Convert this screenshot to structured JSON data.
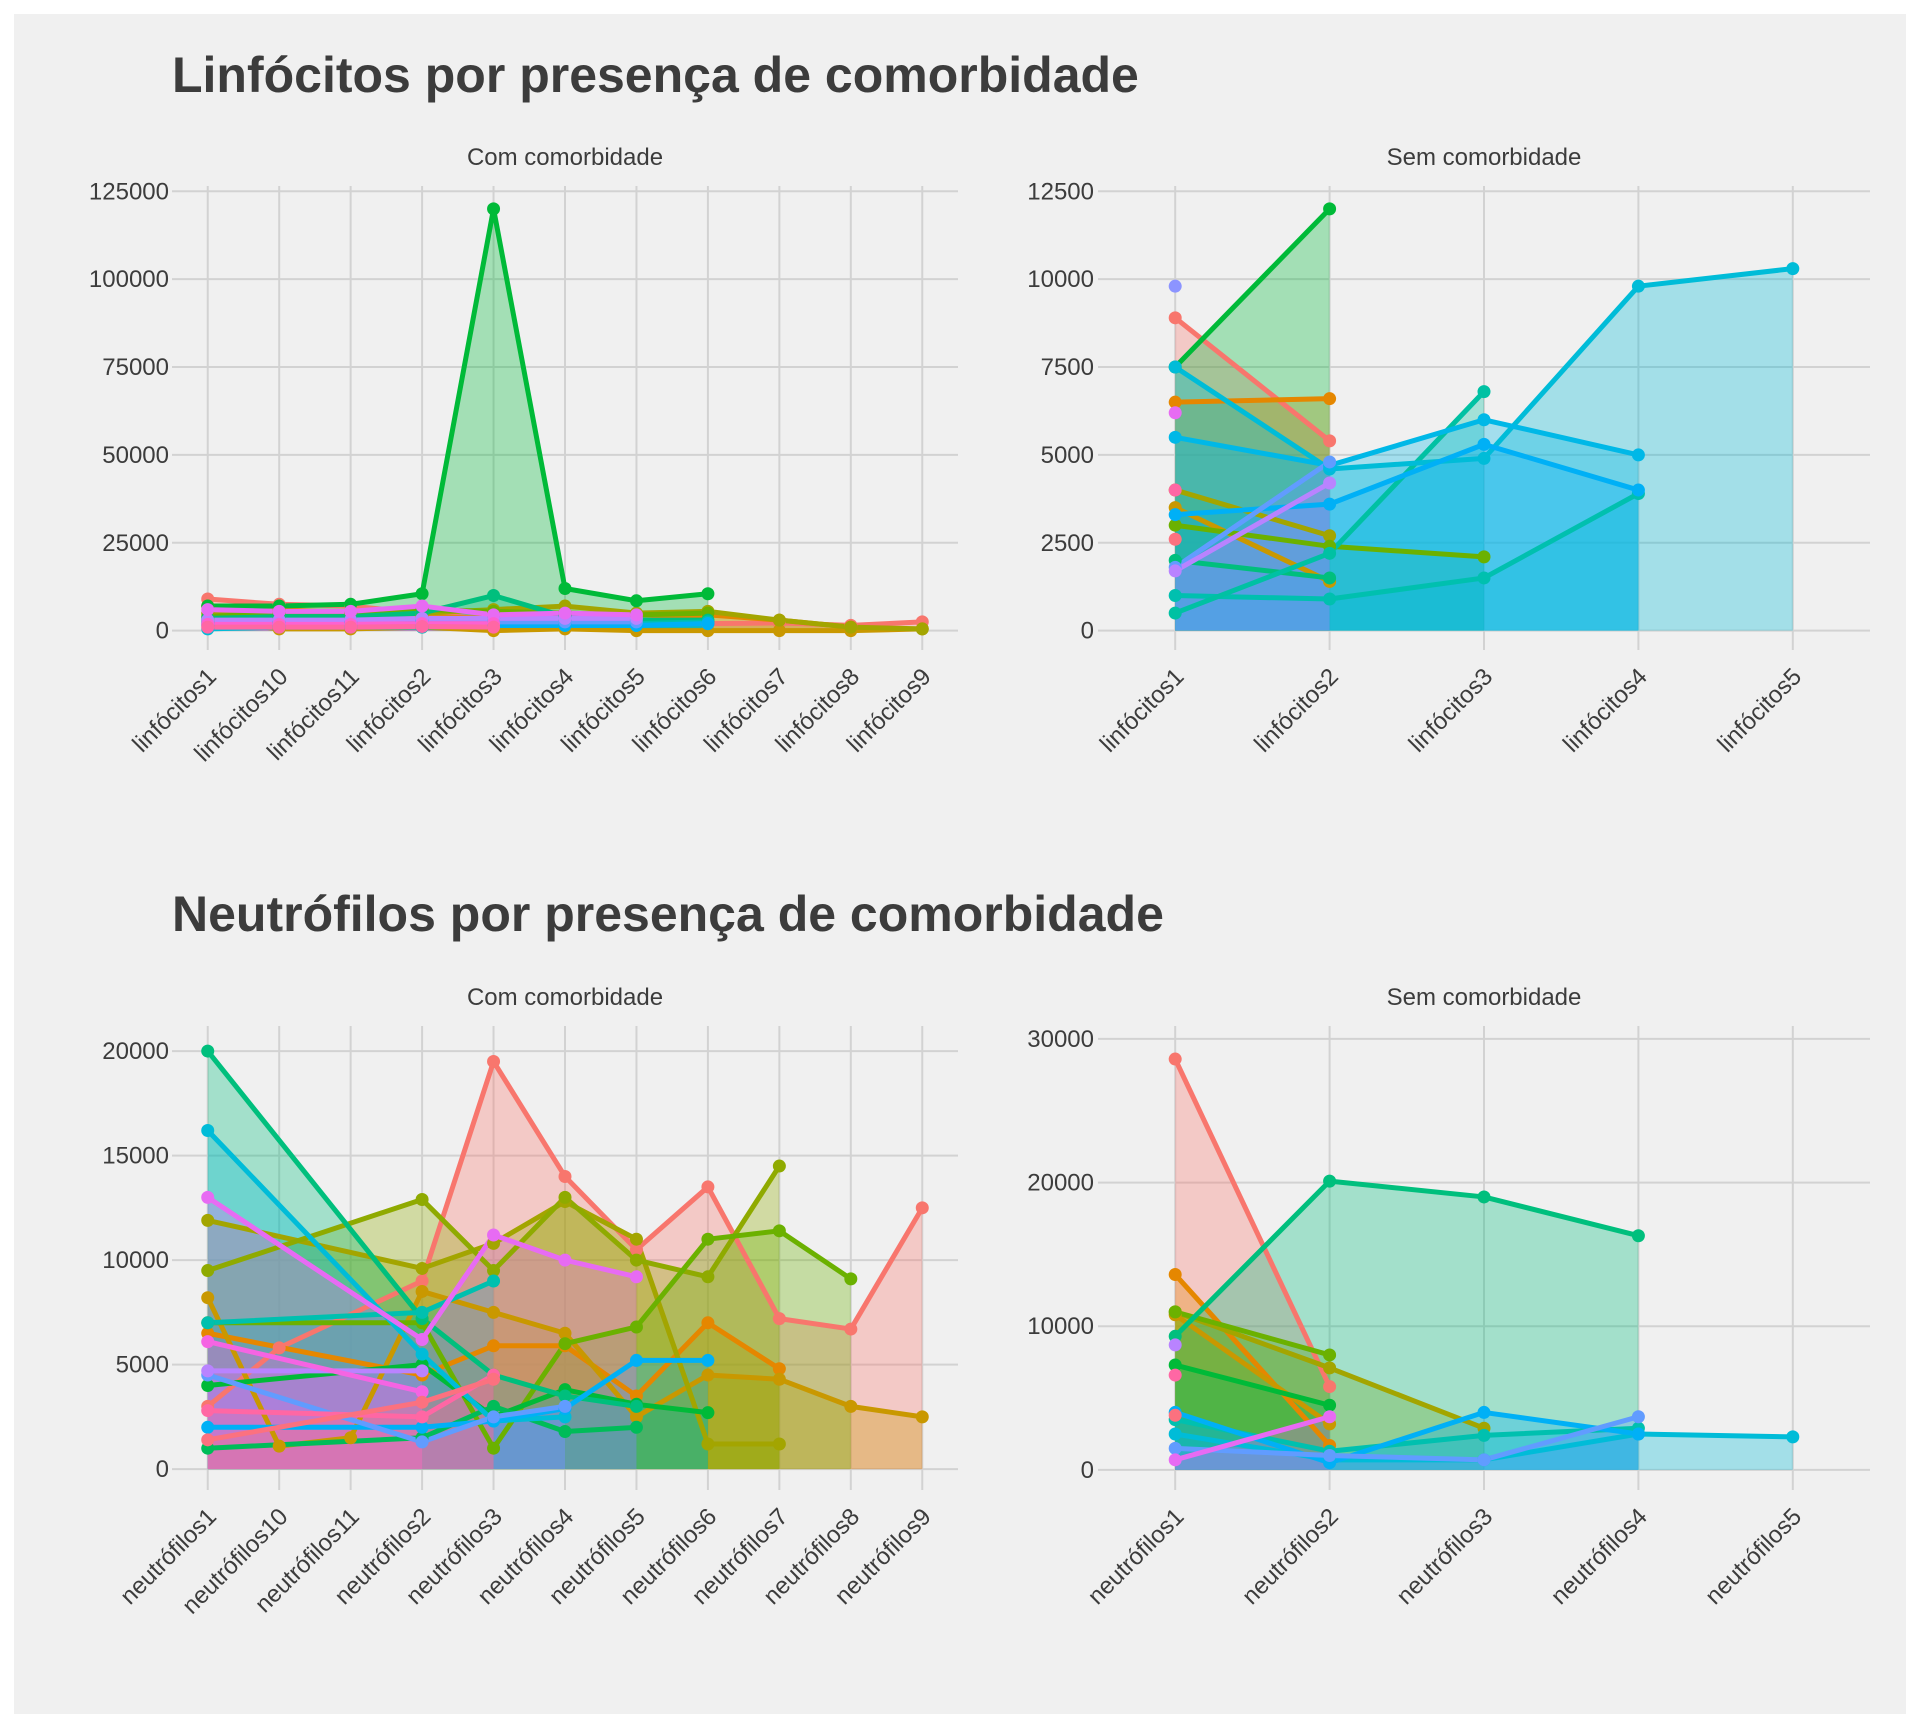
{
  "sections": [
    {
      "title": "Linfócitos por presença de comorbidade"
    },
    {
      "title": "Neutrófilos por presença de comorbidade"
    }
  ],
  "chart_data": [
    {
      "type": "area",
      "section": 0,
      "facet": "Com comorbidade",
      "x_categories": [
        "linfócitos1",
        "linfócitos10",
        "linfócitos11",
        "linfócitos2",
        "linfócitos3",
        "linfócitos4",
        "linfócitos5",
        "linfócitos6",
        "linfócitos7",
        "linfócitos8",
        "linfócitos9"
      ],
      "yticks": [
        0,
        25000,
        50000,
        75000,
        100000,
        125000
      ],
      "ylim": [
        -5500,
        126500
      ],
      "grid": true,
      "legend": "none",
      "series": [
        {
          "color": "#F8766D",
          "values": [
            9000,
            7500,
            7000,
            5000,
            3000,
            2500,
            2500,
            2000,
            2200,
            1500,
            2500
          ]
        },
        {
          "color": "#E58700",
          "values": [
            7000,
            6000,
            null,
            4000,
            3500,
            3000,
            2800,
            4500,
            3000,
            1000,
            null
          ]
        },
        {
          "color": "#C99800",
          "values": [
            3000,
            500,
            500,
            1000,
            0,
            500,
            0,
            0,
            0,
            0,
            500
          ]
        },
        {
          "color": "#A3A500",
          "values": [
            5000,
            4000,
            4500,
            5000,
            6000,
            7000,
            5000,
            5500,
            3000,
            1000,
            500
          ]
        },
        {
          "color": "#6BB100",
          "values": [
            4000,
            5000,
            5000,
            6000,
            5500,
            5000,
            4500,
            5000,
            null,
            null,
            null
          ]
        },
        {
          "color": "#00BA38",
          "values": [
            7000,
            7000,
            7500,
            10500,
            120000,
            12000,
            8500,
            10500,
            null,
            null,
            null
          ]
        },
        {
          "color": "#00BF7D",
          "values": [
            3500,
            4000,
            4000,
            5000,
            10000,
            4000,
            3000,
            3000,
            null,
            null,
            null
          ]
        },
        {
          "color": "#00C0AF",
          "values": [
            2500,
            2500,
            2500,
            3000,
            3500,
            2500,
            2000,
            2500,
            null,
            null,
            null
          ]
        },
        {
          "color": "#00BCD8",
          "values": [
            500,
            1000,
            1000,
            1000,
            1500,
            1500,
            1500,
            2000,
            null,
            null,
            null
          ]
        },
        {
          "color": "#00B0F6",
          "values": [
            1500,
            1500,
            1500,
            1500,
            1500,
            1500,
            1500,
            2000,
            null,
            null,
            null
          ]
        },
        {
          "color": "#619CFF",
          "values": [
            2000,
            2000,
            2000,
            2500,
            2500,
            2500,
            2500,
            null,
            null,
            null,
            null
          ]
        },
        {
          "color": "#B983FF",
          "values": [
            3000,
            3000,
            3000,
            3500,
            3500,
            3500,
            3500,
            null,
            null,
            null,
            null
          ]
        },
        {
          "color": "#E76BF3",
          "values": [
            6000,
            5500,
            5500,
            7000,
            4500,
            5000,
            4500,
            null,
            null,
            null,
            null
          ]
        },
        {
          "color": "#FD61D1",
          "values": [
            1800,
            1800,
            1800,
            2000,
            2000,
            null,
            null,
            null,
            null,
            null,
            null
          ]
        },
        {
          "color": "#FF67A4",
          "values": [
            1000,
            1000,
            1000,
            1200,
            1000,
            null,
            null,
            null,
            null,
            null,
            null
          ]
        }
      ]
    },
    {
      "type": "area",
      "section": 0,
      "facet": "Sem comorbidade",
      "x_categories": [
        "linfócitos1",
        "linfócitos2",
        "linfócitos3",
        "linfócitos4",
        "linfócitos5"
      ],
      "yticks": [
        0,
        2500,
        5000,
        7500,
        10000,
        12500
      ],
      "ylim": [
        -550,
        12650
      ],
      "grid": true,
      "legend": "none",
      "series": [
        {
          "color": "#F8766D",
          "values": [
            8900,
            5400,
            null,
            null,
            null
          ]
        },
        {
          "color": "#E58700",
          "values": [
            6500,
            6600,
            null,
            null,
            null
          ]
        },
        {
          "color": "#C99800",
          "values": [
            3500,
            1400,
            null,
            null,
            null
          ]
        },
        {
          "color": "#A3A500",
          "values": [
            4000,
            2700,
            null,
            null,
            null
          ]
        },
        {
          "color": "#6BB100",
          "values": [
            3000,
            2400,
            2100,
            null,
            null
          ]
        },
        {
          "color": "#00BA38",
          "values": [
            7500,
            12000,
            null,
            null,
            null
          ]
        },
        {
          "color": "#00BF7D",
          "values": [
            2000,
            1500,
            null,
            null,
            null
          ]
        },
        {
          "color": "#00C0AF",
          "values": [
            1000,
            900,
            1500,
            3900,
            null
          ]
        },
        {
          "color": "#00C1A3",
          "values": [
            500,
            2200,
            6800,
            null,
            null
          ]
        },
        {
          "color": "#00BCD8",
          "values": [
            7500,
            4600,
            4900,
            9800,
            10300
          ]
        },
        {
          "color": "#00B8E7",
          "values": [
            5500,
            4700,
            6000,
            5000,
            null
          ]
        },
        {
          "color": "#00B0F6",
          "values": [
            3300,
            3600,
            5300,
            4000,
            null
          ]
        },
        {
          "color": "#619CFF",
          "values": [
            1800,
            4800,
            null,
            null,
            null
          ]
        },
        {
          "color": "#8C94FF",
          "values": [
            9800,
            null,
            null,
            null,
            null
          ]
        },
        {
          "color": "#B983FF",
          "values": [
            1700,
            4200,
            null,
            null,
            null
          ]
        },
        {
          "color": "#E76BF3",
          "values": [
            6200,
            null,
            null,
            null,
            null
          ]
        },
        {
          "color": "#FF67A4",
          "values": [
            4000,
            null,
            null,
            null,
            null
          ]
        },
        {
          "color": "#FC717F",
          "values": [
            2600,
            null,
            null,
            null,
            null
          ]
        }
      ]
    },
    {
      "type": "area",
      "section": 1,
      "facet": "Com comorbidade",
      "x_categories": [
        "neutrófilos1",
        "neutrófilos10",
        "neutrófilos11",
        "neutrófilos2",
        "neutrófilos3",
        "neutrófilos4",
        "neutrófilos5",
        "neutrófilos6",
        "neutrófilos7",
        "neutrófilos8",
        "neutrófilos9"
      ],
      "yticks": [
        0,
        5000,
        10000,
        15000,
        20000
      ],
      "ylim": [
        -1000,
        21200
      ],
      "grid": true,
      "legend": "none",
      "series": [
        {
          "color": "#F8766D",
          "values": [
            3000,
            5800,
            null,
            9000,
            19500,
            14000,
            10500,
            13500,
            7200,
            6700,
            12500
          ]
        },
        {
          "color": "#E58700",
          "values": [
            6500,
            null,
            null,
            4500,
            5900,
            5900,
            3500,
            7000,
            4800,
            null,
            null
          ]
        },
        {
          "color": "#C99800",
          "values": [
            8200,
            1100,
            1500,
            8500,
            7500,
            6500,
            2500,
            4500,
            4300,
            3000,
            2500
          ]
        },
        {
          "color": "#A3A500",
          "values": [
            11900,
            null,
            null,
            9600,
            10800,
            12800,
            11000,
            1200,
            1200,
            null,
            null
          ]
        },
        {
          "color": "#8FAA00",
          "values": [
            9500,
            null,
            null,
            12900,
            9500,
            13000,
            10000,
            9200,
            14500,
            null,
            null
          ]
        },
        {
          "color": "#6BB100",
          "values": [
            7000,
            null,
            null,
            7000,
            1000,
            6000,
            6800,
            11000,
            11400,
            9100,
            null
          ]
        },
        {
          "color": "#00BA38",
          "values": [
            4000,
            null,
            null,
            5000,
            2500,
            3800,
            3100,
            2700,
            null,
            null,
            null
          ]
        },
        {
          "color": "#00BC59",
          "values": [
            1000,
            null,
            null,
            1500,
            3000,
            1800,
            2000,
            null,
            null,
            null,
            null
          ]
        },
        {
          "color": "#00BF7D",
          "values": [
            20000,
            null,
            null,
            7200,
            4500,
            3500,
            3000,
            null,
            null,
            null,
            null
          ]
        },
        {
          "color": "#00C0AF",
          "values": [
            7000,
            null,
            null,
            7500,
            9000,
            null,
            null,
            null,
            null,
            null,
            null
          ]
        },
        {
          "color": "#00BCD8",
          "values": [
            16200,
            null,
            null,
            5500,
            2300,
            2500,
            null,
            null,
            null,
            null,
            null
          ]
        },
        {
          "color": "#00B0F6",
          "values": [
            2000,
            null,
            null,
            2000,
            2300,
            2900,
            5200,
            5200,
            null,
            null,
            null
          ]
        },
        {
          "color": "#619CFF",
          "values": [
            4500,
            null,
            null,
            1300,
            2500,
            3000,
            null,
            null,
            null,
            null,
            null
          ]
        },
        {
          "color": "#B983FF",
          "values": [
            4700,
            null,
            null,
            4700,
            null,
            null,
            null,
            null,
            null,
            null,
            null
          ]
        },
        {
          "color": "#E76BF3",
          "values": [
            13000,
            null,
            null,
            6200,
            11200,
            10000,
            9200,
            null,
            null,
            null,
            null
          ]
        },
        {
          "color": "#F564E3",
          "values": [
            6100,
            null,
            null,
            3700,
            null,
            null,
            null,
            null,
            null,
            null,
            null
          ]
        },
        {
          "color": "#FF67A4",
          "values": [
            2800,
            null,
            null,
            2500,
            4500,
            null,
            null,
            null,
            null,
            null,
            null
          ]
        },
        {
          "color": "#FC717F",
          "values": [
            1400,
            null,
            null,
            3200,
            4300,
            null,
            null,
            null,
            null,
            null,
            null
          ]
        }
      ]
    },
    {
      "type": "area",
      "section": 1,
      "facet": "Sem comorbidade",
      "x_categories": [
        "neutrófilos1",
        "neutrófilos2",
        "neutrófilos3",
        "neutrófilos4",
        "neutrófilos5"
      ],
      "yticks": [
        0,
        10000,
        20000,
        30000
      ],
      "ylim": [
        -1400,
        30900
      ],
      "grid": true,
      "legend": "none",
      "series": [
        {
          "color": "#F8766D",
          "values": [
            28600,
            5800,
            null,
            null,
            null
          ]
        },
        {
          "color": "#E58700",
          "values": [
            13600,
            1700,
            null,
            null,
            null
          ]
        },
        {
          "color": "#C99800",
          "values": [
            10800,
            3200,
            null,
            null,
            null
          ]
        },
        {
          "color": "#A3A500",
          "values": [
            11000,
            7100,
            2900,
            null,
            null
          ]
        },
        {
          "color": "#6BB100",
          "values": [
            11000,
            8000,
            null,
            null,
            null
          ]
        },
        {
          "color": "#00BA38",
          "values": [
            7300,
            4500,
            null,
            null,
            null
          ]
        },
        {
          "color": "#00BF7D",
          "values": [
            9300,
            20100,
            19000,
            16300,
            null
          ]
        },
        {
          "color": "#00C0AF",
          "values": [
            3500,
            1300,
            2400,
            2900,
            null
          ]
        },
        {
          "color": "#00BCD8",
          "values": [
            2500,
            700,
            700,
            2500,
            2300
          ]
        },
        {
          "color": "#00B0F6",
          "values": [
            4000,
            500,
            4000,
            2500,
            null
          ]
        },
        {
          "color": "#619CFF",
          "values": [
            1500,
            1000,
            700,
            3700,
            null
          ]
        },
        {
          "color": "#B983FF",
          "values": [
            8700,
            null,
            null,
            null,
            null
          ]
        },
        {
          "color": "#E76BF3",
          "values": [
            700,
            3700,
            null,
            null,
            null
          ]
        },
        {
          "color": "#FF67A4",
          "values": [
            6600,
            null,
            null,
            null,
            null
          ]
        },
        {
          "color": "#FC717F",
          "values": [
            3800,
            null,
            null,
            null,
            null
          ]
        }
      ]
    }
  ]
}
